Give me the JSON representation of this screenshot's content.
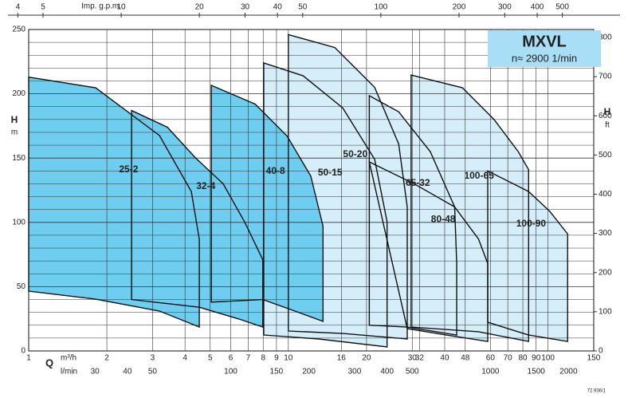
{
  "chart_data": {
    "type": "pump-chart",
    "xscale": "log",
    "badge_title": "MXVL",
    "badge_subtitle": "n≈ 2900 1/min",
    "y_label": "H",
    "y_unit": "m",
    "y2_label": "H",
    "y2_unit": "ft",
    "x_label": "Q",
    "x_unit": "m³/h",
    "x3_unit": "l/min",
    "x2_unit": "Imp. g.p.m.",
    "code": "72.936/1",
    "xlim": [
      1,
      150
    ],
    "xticks": [
      1,
      2,
      3,
      4,
      5,
      6,
      7,
      8,
      9,
      10,
      16,
      20,
      30,
      32,
      40,
      48,
      60,
      70,
      80,
      90,
      100,
      150
    ],
    "x2lim": [
      4.403,
      660.5
    ],
    "x2ticks": [
      4,
      5,
      10,
      20,
      30,
      40,
      50,
      100,
      200,
      300,
      400,
      500
    ],
    "x3lim": [
      16.67,
      2500
    ],
    "x3ticks": [
      30,
      40,
      50,
      100,
      150,
      200,
      300,
      400,
      500,
      1000,
      1500,
      2000
    ],
    "ylim": [
      0,
      250
    ],
    "yticks": [
      0,
      50,
      100,
      150,
      200,
      250
    ],
    "yminor": [
      10,
      20,
      30,
      40,
      60,
      70,
      80,
      90,
      110,
      120,
      130,
      140,
      160,
      170,
      180,
      190,
      210,
      220,
      230,
      240
    ],
    "y2lim": [
      0,
      820.2
    ],
    "y2ticks": [
      0,
      100,
      200,
      300,
      400,
      500,
      600,
      700,
      800
    ],
    "grid": true,
    "regions": [
      {
        "name": "100-90",
        "color": "#d6eef9",
        "q": [
          58.6,
          84.2,
          101.6,
          119,
          119,
          84.2,
          58.6
        ],
        "h": [
          140,
          124,
          108.6,
          91,
          7.4,
          12.4,
          22.3
        ]
      },
      {
        "name": "100-65",
        "color": "#d6eef9",
        "q": [
          29.7,
          46.8,
          62,
          76.8,
          84.2,
          84.2,
          54,
          29.7
        ],
        "h": [
          214.6,
          204.7,
          180,
          155,
          141,
          7.4,
          14.9,
          18.6
        ]
      },
      {
        "name": "80-48",
        "color": "#d6eef9",
        "q": [
          20.5,
          30.5,
          43.7,
          54,
          58.6,
          58.6,
          40.6,
          28.7
        ],
        "h": [
          147,
          130,
          112,
          87,
          68,
          7.4,
          12.4,
          17.4
        ]
      },
      {
        "name": "65-32",
        "color": "#d6eef9",
        "q": [
          20.5,
          26.6,
          35.2,
          43.7,
          44.5,
          44.5,
          28.7,
          20.5
        ],
        "h": [
          198.5,
          186,
          155,
          112,
          68,
          12.4,
          18.6,
          20
        ]
      },
      {
        "name": "50-20",
        "color": "#d6eef9",
        "q": [
          10,
          15.1,
          21.5,
          26.6,
          28.7,
          28.7,
          16.2,
          10
        ],
        "h": [
          246,
          236,
          205,
          161,
          112,
          9.3,
          13.6,
          15.5
        ]
      },
      {
        "name": "50-15",
        "color": "#d6eef9",
        "q": [
          8.04,
          11.4,
          16.2,
          21.5,
          24,
          24,
          13.1,
          8.04
        ],
        "h": [
          224,
          214,
          189,
          149,
          100.5,
          3.1,
          9.3,
          12.4
        ]
      },
      {
        "name": "40-8",
        "color": "#6fcdf0",
        "q": [
          5.05,
          7.45,
          9.9,
          12.2,
          13.6,
          13.6,
          10.6,
          7.97,
          5.05
        ],
        "h": [
          206.6,
          192,
          167,
          136,
          97,
          23,
          31,
          40,
          38
        ]
      },
      {
        "name": "32-4",
        "color": "#6fcdf0",
        "q": [
          2.49,
          3.42,
          4.4,
          5.61,
          6.8,
          7.97,
          7.97,
          6.46,
          4.54,
          2.49
        ],
        "h": [
          187,
          174,
          150,
          130,
          100,
          71,
          18.6,
          24.8,
          34,
          40
        ]
      },
      {
        "name": "25-2",
        "color": "#6fcdf0",
        "q": [
          1,
          1.81,
          3.19,
          4.23,
          4.54,
          4.54,
          3.19,
          1.81,
          1
        ],
        "h": [
          213,
          204.7,
          167.5,
          124,
          86.8,
          18.6,
          31,
          40.3,
          46.5
        ]
      }
    ]
  }
}
